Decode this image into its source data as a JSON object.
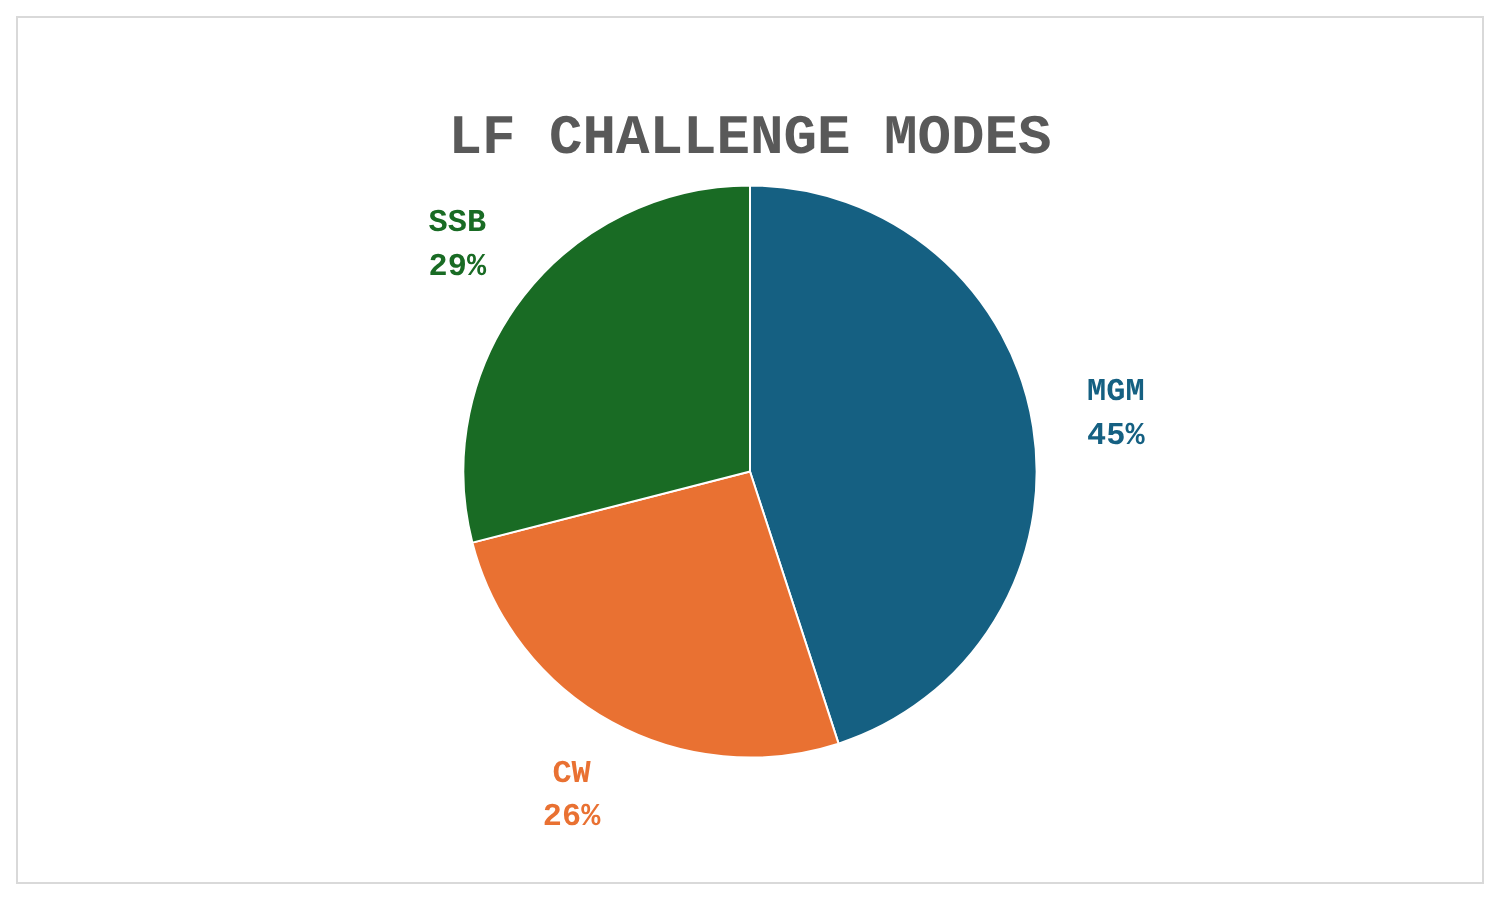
{
  "chart_data": {
    "type": "pie",
    "title": "LF CHALLENGE MODES",
    "categories": [
      "MGM",
      "CW",
      "SSB"
    ],
    "values": [
      45,
      26,
      29
    ],
    "colors": [
      "#156082",
      "#e97132",
      "#196b24"
    ],
    "value_labels": [
      "45%",
      "26%",
      "29%"
    ]
  }
}
